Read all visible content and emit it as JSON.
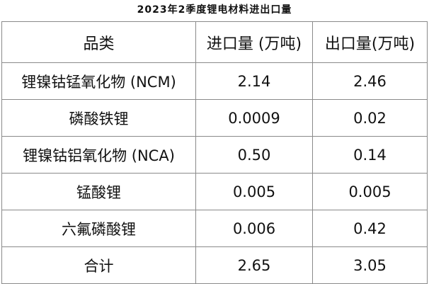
{
  "title": "2023年2季度锂电材料进出口量",
  "table": {
    "headers": [
      "品类",
      "进口量 (万吨)",
      "出口量(万吨)"
    ],
    "rows": [
      [
        "锂镍钴锰氧化物 (NCM)",
        "2.14",
        "2.46"
      ],
      [
        "磷酸铁锂",
        "0.0009",
        "0.02"
      ],
      [
        "锂镍钴铝氧化物 (NCA)",
        "0.50",
        "0.14"
      ],
      [
        "锰酸锂",
        "0.005",
        "0.005"
      ],
      [
        "六氟磷酸锂",
        "0.006",
        "0.42"
      ],
      [
        "合计",
        "2.65",
        "3.05"
      ]
    ]
  }
}
